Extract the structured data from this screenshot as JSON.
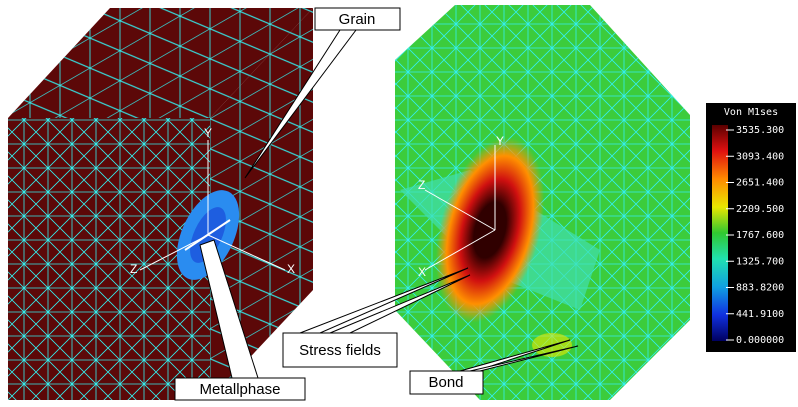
{
  "annotations": [
    "Grain",
    "Metallphase",
    "Stress fields",
    "Bond"
  ],
  "left_axes": [
    "Y",
    "Z",
    "X"
  ],
  "right_axes": [
    "Y",
    "Z",
    "X"
  ],
  "legend": {
    "title": "Von M1ses",
    "ticks": [
      "3535.300",
      "3093.400",
      "2651.400",
      "2209.500",
      "1767.600",
      "1325.700",
      "883.8200",
      "441.9100",
      "0.000000"
    ]
  }
}
